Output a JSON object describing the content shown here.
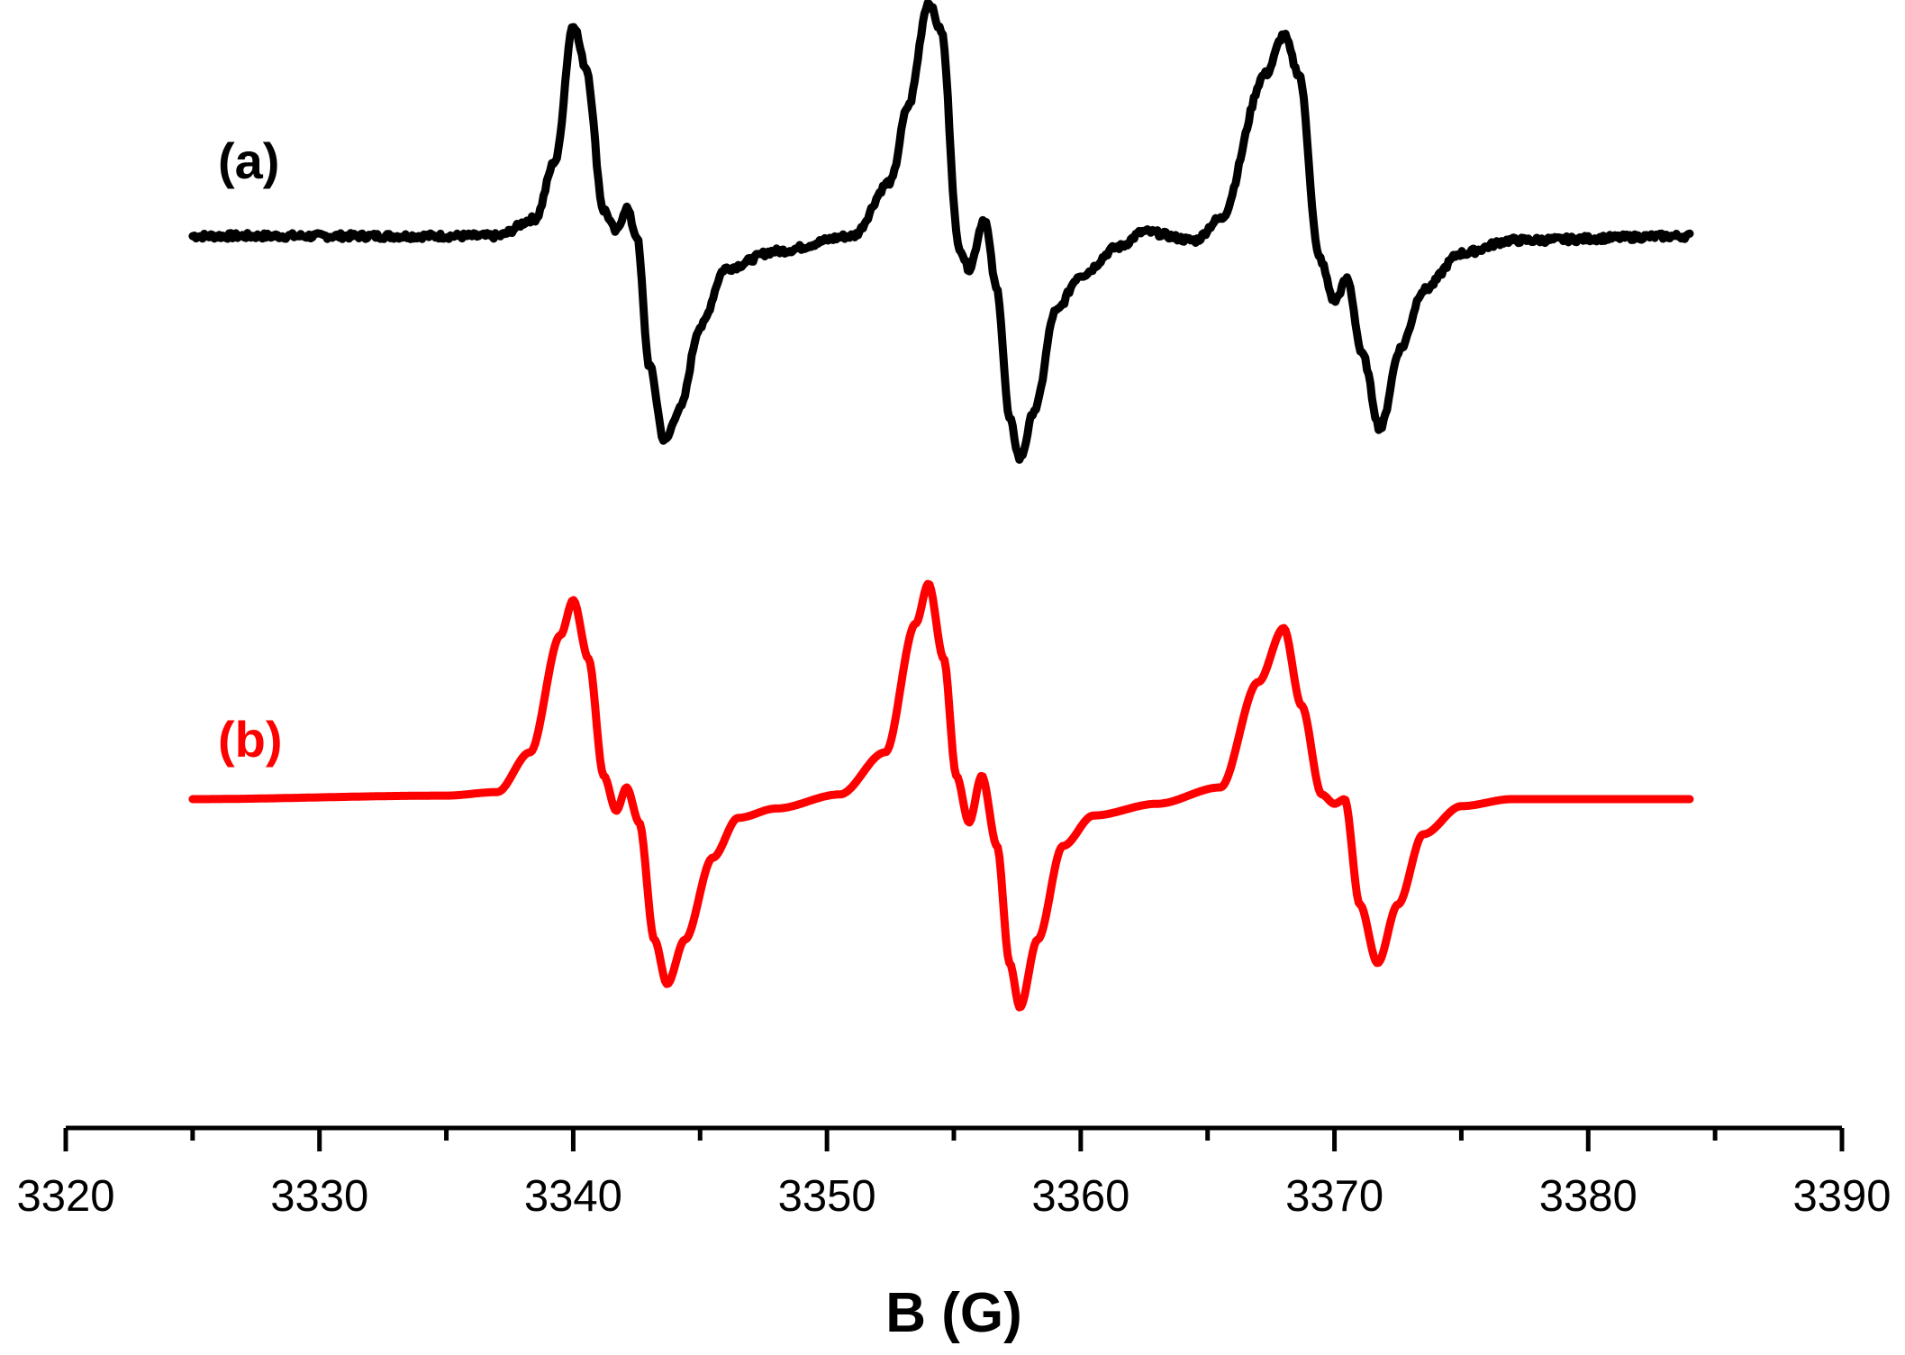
{
  "chart_data": {
    "type": "line",
    "title": "",
    "xlabel": "B (G)",
    "ylabel": "",
    "xlim": [
      3320,
      3390
    ],
    "x_ticks": [
      3320,
      3330,
      3340,
      3350,
      3360,
      3370,
      3380,
      3390
    ],
    "x_tick_labels": [
      "3320",
      "3330",
      "3340",
      "3350",
      "3360",
      "3370",
      "3380",
      "3390"
    ],
    "minor_tick_step": 5,
    "x_range": [
      3325,
      3384
    ],
    "y_axis_visible": false,
    "grid": false,
    "series": [
      {
        "name": "(a)",
        "color": "#000000",
        "noisy": true,
        "baseline": 0,
        "points": [
          [
            3325,
            0
          ],
          [
            3337,
            0
          ],
          [
            3338.5,
            0.08
          ],
          [
            3339.3,
            0.35
          ],
          [
            3340,
            0.98
          ],
          [
            3340.5,
            0.78
          ],
          [
            3341.2,
            0.12
          ],
          [
            3341.7,
            0.02
          ],
          [
            3342.1,
            0.13
          ],
          [
            3342.5,
            0.0
          ],
          [
            3343.0,
            -0.6
          ],
          [
            3343.6,
            -0.95
          ],
          [
            3344.2,
            -0.8
          ],
          [
            3345,
            -0.42
          ],
          [
            3346,
            -0.15
          ],
          [
            3348,
            -0.07
          ],
          [
            3351,
            0.0
          ],
          [
            3352.5,
            0.25
          ],
          [
            3353.2,
            0.6
          ],
          [
            3354,
            1.08
          ],
          [
            3354.5,
            0.95
          ],
          [
            3355.2,
            -0.05
          ],
          [
            3355.6,
            -0.15
          ],
          [
            3356.2,
            0.08
          ],
          [
            3356.7,
            -0.25
          ],
          [
            3357.2,
            -0.85
          ],
          [
            3357.6,
            -1.03
          ],
          [
            3358.2,
            -0.8
          ],
          [
            3359,
            -0.35
          ],
          [
            3360,
            -0.18
          ],
          [
            3361.5,
            -0.05
          ],
          [
            3362.5,
            0.02
          ],
          [
            3364.5,
            -0.02
          ],
          [
            3365.5,
            0.08
          ],
          [
            3367.3,
            0.75
          ],
          [
            3368,
            0.93
          ],
          [
            3368.6,
            0.75
          ],
          [
            3369.4,
            -0.1
          ],
          [
            3370,
            -0.3
          ],
          [
            3370.5,
            -0.2
          ],
          [
            3371.1,
            -0.55
          ],
          [
            3371.8,
            -0.89
          ],
          [
            3372.6,
            -0.52
          ],
          [
            3373.5,
            -0.25
          ],
          [
            3375,
            -0.08
          ],
          [
            3377,
            -0.02
          ],
          [
            3384,
            0
          ]
        ]
      },
      {
        "name": "(b)",
        "color": "#ff0000",
        "noisy": false,
        "baseline": 0,
        "points": [
          [
            3325,
            0
          ],
          [
            3335,
            0.015
          ],
          [
            3337,
            0.03
          ],
          [
            3338.3,
            0.2
          ],
          [
            3339.5,
            0.7
          ],
          [
            3340,
            0.85
          ],
          [
            3340.6,
            0.6
          ],
          [
            3341.2,
            0.1
          ],
          [
            3341.7,
            -0.05
          ],
          [
            3342.1,
            0.05
          ],
          [
            3342.6,
            -0.1
          ],
          [
            3343.2,
            -0.6
          ],
          [
            3343.7,
            -0.79
          ],
          [
            3344.4,
            -0.6
          ],
          [
            3345.5,
            -0.25
          ],
          [
            3346.5,
            -0.08
          ],
          [
            3348,
            -0.04
          ],
          [
            3350.5,
            0.02
          ],
          [
            3352.3,
            0.2
          ],
          [
            3353.5,
            0.75
          ],
          [
            3354,
            0.92
          ],
          [
            3354.6,
            0.6
          ],
          [
            3355.1,
            0.1
          ],
          [
            3355.6,
            -0.1
          ],
          [
            3356.1,
            0.1
          ],
          [
            3356.7,
            -0.2
          ],
          [
            3357.2,
            -0.7
          ],
          [
            3357.6,
            -0.89
          ],
          [
            3358.3,
            -0.6
          ],
          [
            3359.3,
            -0.2
          ],
          [
            3360.5,
            -0.07
          ],
          [
            3363,
            -0.02
          ],
          [
            3365.5,
            0.05
          ],
          [
            3367,
            0.5
          ],
          [
            3368,
            0.73
          ],
          [
            3368.7,
            0.4
          ],
          [
            3369.5,
            0.02
          ],
          [
            3370,
            -0.02
          ],
          [
            3370.4,
            0.0
          ],
          [
            3371.0,
            -0.45
          ],
          [
            3371.7,
            -0.7
          ],
          [
            3372.5,
            -0.45
          ],
          [
            3373.5,
            -0.15
          ],
          [
            3375,
            -0.03
          ],
          [
            3377,
            0
          ],
          [
            3384,
            0
          ]
        ]
      }
    ]
  }
}
